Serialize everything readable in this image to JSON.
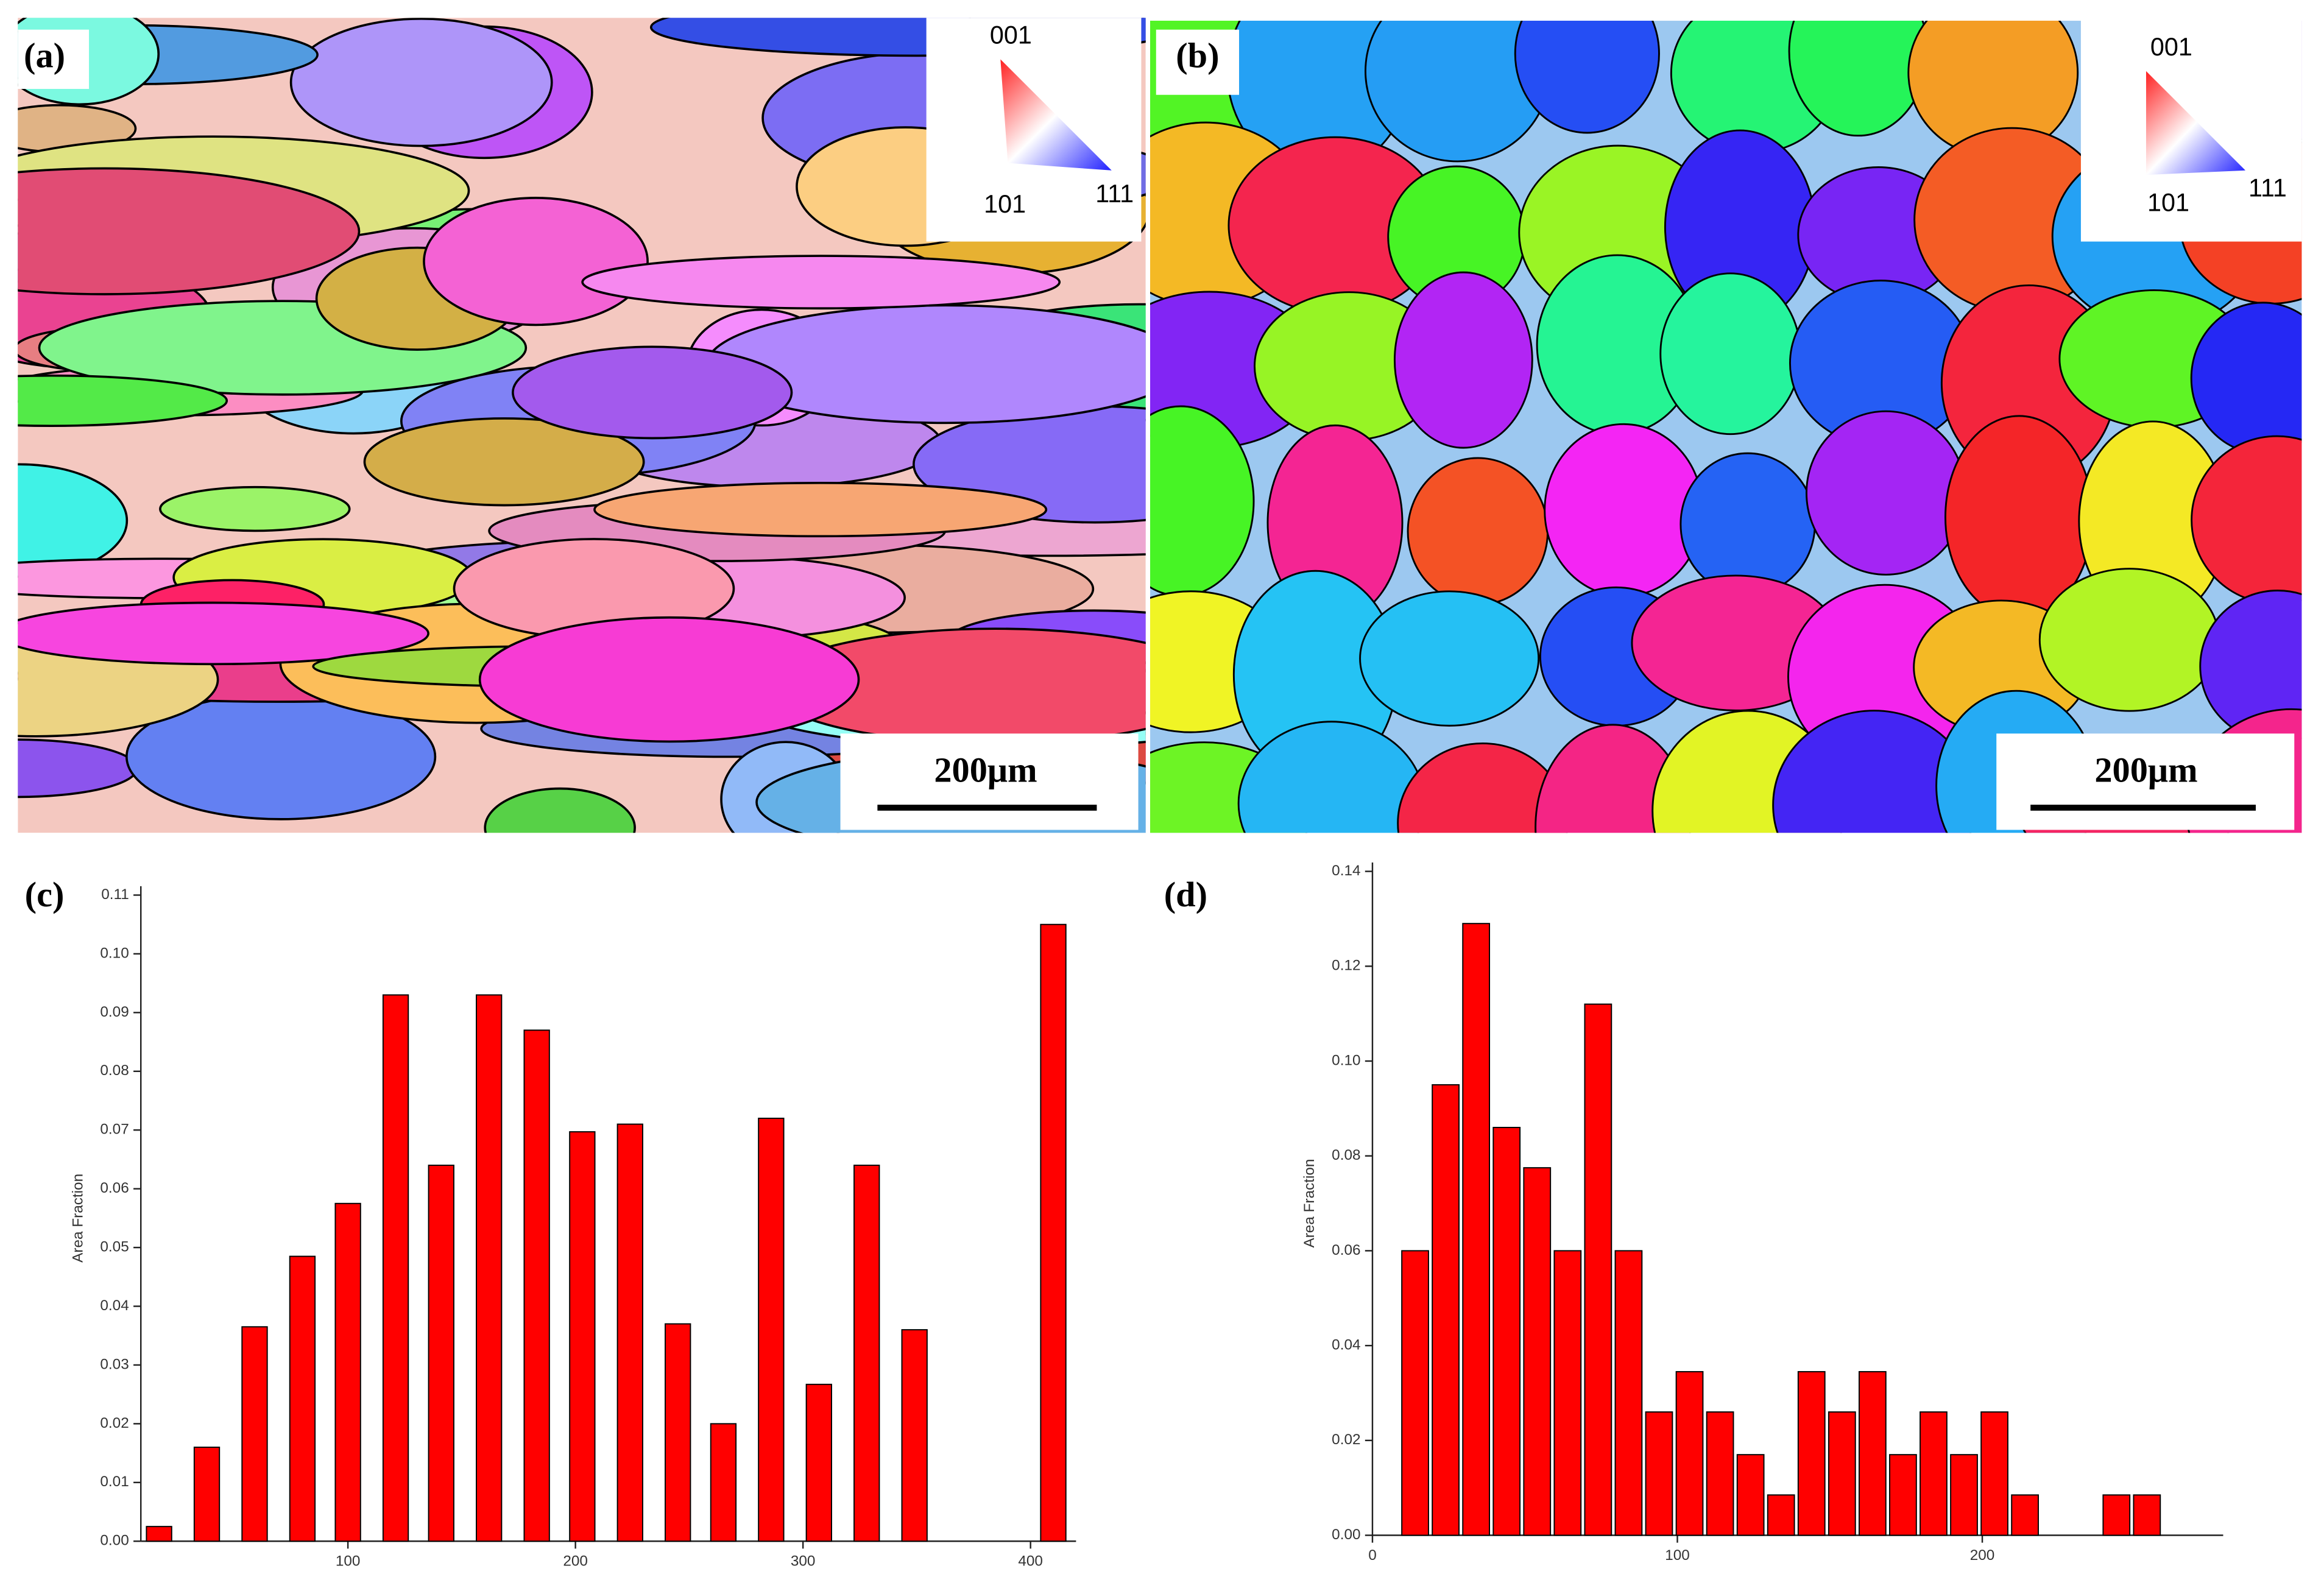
{
  "maps": [
    {
      "label": "(a)",
      "ipf": {
        "top": "001",
        "left": "101",
        "right": "111"
      },
      "scale_bar": "200μm"
    },
    {
      "label": "(b)",
      "ipf": {
        "top": "001",
        "left": "101",
        "right": "111"
      },
      "scale_bar": "200μm"
    }
  ],
  "chart_data": [
    {
      "type": "bar",
      "label": "(c)",
      "y_label": "Area Fraction",
      "color": "#ff0000",
      "x": [
        17,
        38,
        59,
        80,
        100,
        121,
        141,
        162,
        183,
        203,
        224,
        245,
        265,
        286,
        307,
        328,
        349,
        410
      ],
      "values": [
        0.0025,
        0.016,
        0.0365,
        0.0485,
        0.0575,
        0.093,
        0.064,
        0.093,
        0.087,
        0.0697,
        0.071,
        0.037,
        0.02,
        0.072,
        0.0267,
        0.064,
        0.036,
        0.105
      ],
      "xlim": [
        9,
        420
      ],
      "ylim": [
        0,
        0.11
      ],
      "xticks": [
        100,
        200,
        300,
        400
      ],
      "yticks": [
        {
          "value": 0,
          "label": "0.00"
        },
        {
          "value": 0.01,
          "label": "0.01"
        },
        {
          "value": 0.02,
          "label": "0.02"
        },
        {
          "value": 0.03,
          "label": "0.03"
        },
        {
          "value": 0.04,
          "label": "0.04"
        },
        {
          "value": 0.05,
          "label": "0.05"
        },
        {
          "value": 0.06,
          "label": "0.06"
        },
        {
          "value": 0.07,
          "label": "0.07"
        },
        {
          "value": 0.08,
          "label": "0.08"
        },
        {
          "value": 0.09,
          "label": "0.09"
        },
        {
          "value": 0.1,
          "label": "0.10"
        },
        {
          "value": 0.11,
          "label": "0.11"
        }
      ]
    },
    {
      "type": "bar",
      "label": "(d)",
      "y_label": "Area Fraction",
      "color": "#ff0000",
      "x": [
        14,
        24,
        34,
        44,
        54,
        64,
        74,
        84,
        94,
        104,
        114,
        124,
        134,
        144,
        154,
        164,
        174,
        184,
        194,
        204,
        214,
        244,
        254
      ],
      "values": [
        0.06,
        0.095,
        0.129,
        0.086,
        0.0775,
        0.06,
        0.112,
        0.06,
        0.026,
        0.0345,
        0.026,
        0.017,
        0.0085,
        0.0345,
        0.026,
        0.0345,
        0.017,
        0.026,
        0.017,
        0.026,
        0.0085,
        0.0085,
        0.0085
      ],
      "xlim": [
        0,
        279
      ],
      "ylim": [
        0,
        0.14
      ],
      "xticks": [
        0,
        100,
        200
      ],
      "yticks": [
        {
          "value": 0,
          "label": "0.00"
        },
        {
          "value": 0.02,
          "label": "0.02"
        },
        {
          "value": 0.04,
          "label": "0.04"
        },
        {
          "value": 0.06,
          "label": "0.06"
        },
        {
          "value": 0.08,
          "label": "0.08"
        },
        {
          "value": 0.1,
          "label": "0.10"
        },
        {
          "value": 0.12,
          "label": "0.12"
        },
        {
          "value": 0.14,
          "label": "0.14"
        }
      ]
    }
  ]
}
